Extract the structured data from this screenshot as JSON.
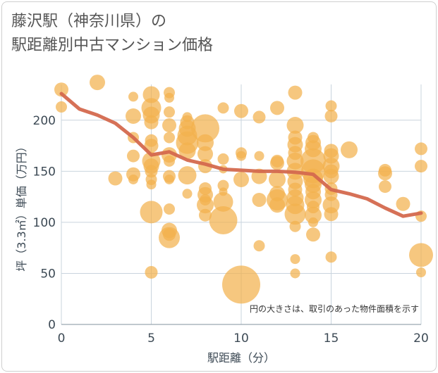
{
  "chart_title": {
    "line1": "藤沢駅（神奈川県）の",
    "line2": "駅距離別中古マンション価格"
  },
  "note": "円の大きさは、取引のあった物件面積を示す",
  "colors": {
    "bubble": "#f2b24d",
    "line": "#d4694e",
    "grid": "#c9d4de",
    "text": "#3d4a55"
  },
  "chart_data": {
    "type": "scatter",
    "xlabel": "駅距離（分）",
    "ylabel": "坪（3.3㎡）単価（万円）",
    "xlim": [
      0,
      20
    ],
    "ylim": [
      0,
      235
    ],
    "x_ticks": [
      0,
      5,
      10,
      15,
      20
    ],
    "y_ticks": [
      0,
      50,
      100,
      150,
      200
    ],
    "grid": true,
    "bubbles": [
      {
        "x": 0,
        "y": 230,
        "s": 10
      },
      {
        "x": 0,
        "y": 213,
        "s": 8
      },
      {
        "x": 2,
        "y": 237,
        "s": 11
      },
      {
        "x": 3,
        "y": 143,
        "s": 10
      },
      {
        "x": 4,
        "y": 223,
        "s": 7
      },
      {
        "x": 4,
        "y": 204,
        "s": 11
      },
      {
        "x": 4,
        "y": 183,
        "s": 8
      },
      {
        "x": 4,
        "y": 165,
        "s": 9
      },
      {
        "x": 4,
        "y": 147,
        "s": 10
      },
      {
        "x": 4,
        "y": 142,
        "s": 7
      },
      {
        "x": 5,
        "y": 225,
        "s": 12
      },
      {
        "x": 5,
        "y": 212,
        "s": 14
      },
      {
        "x": 5,
        "y": 205,
        "s": 12
      },
      {
        "x": 5,
        "y": 198,
        "s": 10
      },
      {
        "x": 5,
        "y": 180,
        "s": 9
      },
      {
        "x": 5,
        "y": 175,
        "s": 10
      },
      {
        "x": 5,
        "y": 160,
        "s": 13
      },
      {
        "x": 5,
        "y": 155,
        "s": 11
      },
      {
        "x": 5,
        "y": 150,
        "s": 9
      },
      {
        "x": 5,
        "y": 142,
        "s": 8
      },
      {
        "x": 5,
        "y": 137,
        "s": 7
      },
      {
        "x": 5,
        "y": 110,
        "s": 16
      },
      {
        "x": 5,
        "y": 51,
        "s": 9
      },
      {
        "x": 6,
        "y": 227,
        "s": 8
      },
      {
        "x": 6,
        "y": 222,
        "s": 7
      },
      {
        "x": 6,
        "y": 208,
        "s": 8
      },
      {
        "x": 6,
        "y": 195,
        "s": 10
      },
      {
        "x": 6,
        "y": 183,
        "s": 8
      },
      {
        "x": 6,
        "y": 166,
        "s": 11
      },
      {
        "x": 6,
        "y": 160,
        "s": 8
      },
      {
        "x": 6,
        "y": 145,
        "s": 9
      },
      {
        "x": 6,
        "y": 142,
        "s": 7
      },
      {
        "x": 6,
        "y": 113,
        "s": 8
      },
      {
        "x": 6,
        "y": 92,
        "s": 11
      },
      {
        "x": 6,
        "y": 88,
        "s": 9
      },
      {
        "x": 6,
        "y": 85,
        "s": 15
      },
      {
        "x": 7,
        "y": 203,
        "s": 7
      },
      {
        "x": 7,
        "y": 198,
        "s": 10
      },
      {
        "x": 7,
        "y": 192,
        "s": 12
      },
      {
        "x": 7,
        "y": 185,
        "s": 14
      },
      {
        "x": 7,
        "y": 178,
        "s": 16
      },
      {
        "x": 7,
        "y": 170,
        "s": 12
      },
      {
        "x": 7,
        "y": 146,
        "s": 13
      },
      {
        "x": 7,
        "y": 128,
        "s": 7
      },
      {
        "x": 8,
        "y": 192,
        "s": 20
      },
      {
        "x": 8,
        "y": 178,
        "s": 12
      },
      {
        "x": 8,
        "y": 167,
        "s": 11
      },
      {
        "x": 8,
        "y": 155,
        "s": 10
      },
      {
        "x": 8,
        "y": 133,
        "s": 9
      },
      {
        "x": 8,
        "y": 127,
        "s": 11
      },
      {
        "x": 8,
        "y": 122,
        "s": 8
      },
      {
        "x": 8,
        "y": 117,
        "s": 12
      },
      {
        "x": 8,
        "y": 107,
        "s": 9
      },
      {
        "x": 9,
        "y": 212,
        "s": 8
      },
      {
        "x": 9,
        "y": 162,
        "s": 8
      },
      {
        "x": 9,
        "y": 152,
        "s": 6
      },
      {
        "x": 9,
        "y": 136,
        "s": 8
      },
      {
        "x": 9,
        "y": 130,
        "s": 6
      },
      {
        "x": 9,
        "y": 120,
        "s": 14
      },
      {
        "x": 9,
        "y": 102,
        "s": 20
      },
      {
        "x": 10,
        "y": 209,
        "s": 10
      },
      {
        "x": 10,
        "y": 168,
        "s": 8
      },
      {
        "x": 10,
        "y": 165,
        "s": 7
      },
      {
        "x": 10,
        "y": 142,
        "s": 11
      },
      {
        "x": 10,
        "y": 39,
        "s": 27
      },
      {
        "x": 11,
        "y": 203,
        "s": 9
      },
      {
        "x": 11,
        "y": 165,
        "s": 7
      },
      {
        "x": 11,
        "y": 145,
        "s": 11
      },
      {
        "x": 11,
        "y": 122,
        "s": 10
      },
      {
        "x": 11,
        "y": 77,
        "s": 8
      },
      {
        "x": 12,
        "y": 212,
        "s": 10
      },
      {
        "x": 12,
        "y": 160,
        "s": 9
      },
      {
        "x": 12,
        "y": 158,
        "s": 10
      },
      {
        "x": 12,
        "y": 142,
        "s": 12
      },
      {
        "x": 12,
        "y": 128,
        "s": 11
      },
      {
        "x": 12,
        "y": 122,
        "s": 15
      },
      {
        "x": 12,
        "y": 117,
        "s": 11
      },
      {
        "x": 13,
        "y": 227,
        "s": 10
      },
      {
        "x": 13,
        "y": 195,
        "s": 12
      },
      {
        "x": 13,
        "y": 183,
        "s": 10
      },
      {
        "x": 13,
        "y": 176,
        "s": 11
      },
      {
        "x": 13,
        "y": 168,
        "s": 10
      },
      {
        "x": 13,
        "y": 160,
        "s": 12
      },
      {
        "x": 13,
        "y": 150,
        "s": 12
      },
      {
        "x": 13,
        "y": 140,
        "s": 11
      },
      {
        "x": 13,
        "y": 132,
        "s": 10
      },
      {
        "x": 13,
        "y": 124,
        "s": 12
      },
      {
        "x": 13,
        "y": 117,
        "s": 13
      },
      {
        "x": 13,
        "y": 108,
        "s": 15
      },
      {
        "x": 13,
        "y": 96,
        "s": 8
      },
      {
        "x": 13,
        "y": 64,
        "s": 7
      },
      {
        "x": 13,
        "y": 50,
        "s": 7
      },
      {
        "x": 14,
        "y": 183,
        "s": 8
      },
      {
        "x": 14,
        "y": 178,
        "s": 11
      },
      {
        "x": 14,
        "y": 172,
        "s": 12
      },
      {
        "x": 14,
        "y": 160,
        "s": 18
      },
      {
        "x": 14,
        "y": 150,
        "s": 17
      },
      {
        "x": 14,
        "y": 143,
        "s": 14
      },
      {
        "x": 14,
        "y": 137,
        "s": 12
      },
      {
        "x": 14,
        "y": 130,
        "s": 11
      },
      {
        "x": 14,
        "y": 122,
        "s": 12
      },
      {
        "x": 14,
        "y": 115,
        "s": 9
      },
      {
        "x": 14,
        "y": 107,
        "s": 12
      },
      {
        "x": 14,
        "y": 100,
        "s": 7
      },
      {
        "x": 14,
        "y": 88,
        "s": 10
      },
      {
        "x": 15,
        "y": 214,
        "s": 8
      },
      {
        "x": 15,
        "y": 204,
        "s": 9
      },
      {
        "x": 15,
        "y": 170,
        "s": 10
      },
      {
        "x": 15,
        "y": 165,
        "s": 11
      },
      {
        "x": 15,
        "y": 155,
        "s": 12
      },
      {
        "x": 15,
        "y": 150,
        "s": 10
      },
      {
        "x": 15,
        "y": 145,
        "s": 11
      },
      {
        "x": 15,
        "y": 133,
        "s": 9
      },
      {
        "x": 15,
        "y": 127,
        "s": 9
      },
      {
        "x": 15,
        "y": 117,
        "s": 12
      },
      {
        "x": 15,
        "y": 108,
        "s": 10
      },
      {
        "x": 15,
        "y": 66,
        "s": 8
      },
      {
        "x": 16,
        "y": 171,
        "s": 12
      },
      {
        "x": 18,
        "y": 151,
        "s": 9
      },
      {
        "x": 18,
        "y": 148,
        "s": 10
      },
      {
        "x": 18,
        "y": 135,
        "s": 9
      },
      {
        "x": 19,
        "y": 118,
        "s": 10
      },
      {
        "x": 20,
        "y": 172,
        "s": 9
      },
      {
        "x": 20,
        "y": 155,
        "s": 9
      },
      {
        "x": 20,
        "y": 106,
        "s": 8
      },
      {
        "x": 20,
        "y": 68,
        "s": 17
      },
      {
        "x": 20,
        "y": 51,
        "s": 7
      }
    ],
    "series": [
      {
        "x": [
          0,
          1,
          2,
          3,
          4,
          5,
          6,
          7,
          8,
          9,
          10,
          11,
          12,
          13,
          14,
          15,
          16,
          17,
          18,
          19,
          20
        ],
        "values": [
          226,
          211,
          205,
          197,
          183,
          166,
          169,
          161,
          157,
          152,
          151,
          150,
          150,
          149,
          147,
          132,
          128,
          123,
          114,
          106,
          109
        ]
      }
    ]
  }
}
